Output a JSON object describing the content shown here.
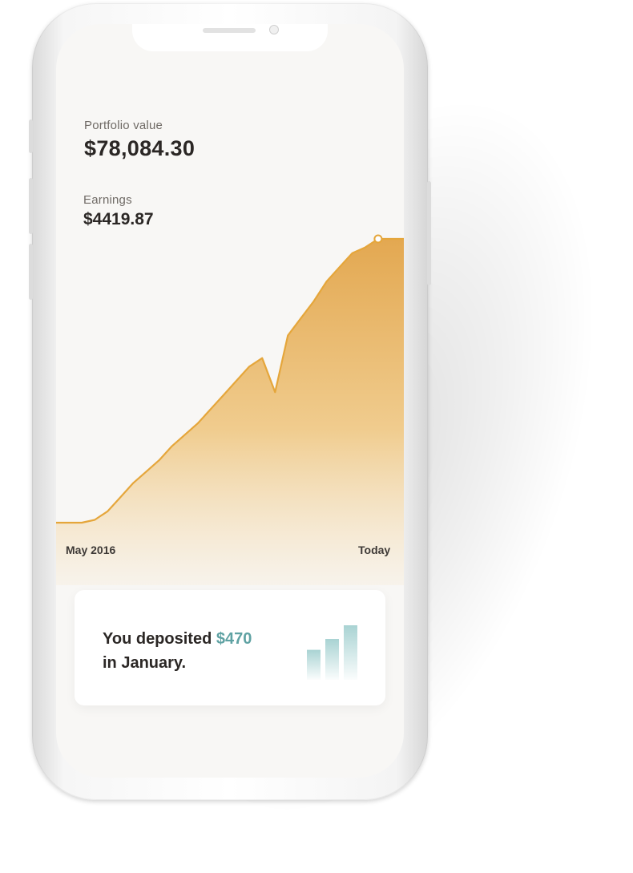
{
  "portfolio": {
    "label": "Portfolio value",
    "value": "$78,084.30"
  },
  "earnings": {
    "label": "Earnings",
    "value": "$4419.87"
  },
  "chart": {
    "start_label": "May 2016",
    "end_label": "Today",
    "line_color": "#e5a63b",
    "fill_top_color": "#e3a851",
    "fill_bottom_color": "#f7f0e4"
  },
  "deposit_card": {
    "prefix": "You deposited",
    "amount": "$470",
    "suffix": "in January.",
    "amount_color": "#5fa2a3",
    "bar_levels": [
      0.55,
      0.75,
      1.0
    ]
  },
  "chart_data": {
    "type": "area",
    "title": "",
    "xlabel": "",
    "ylabel": "",
    "x_start": "May 2016",
    "x_end": "Today",
    "series": [
      {
        "values": [
          0.0,
          0.0,
          0.0,
          0.01,
          0.04,
          0.09,
          0.14,
          0.18,
          0.22,
          0.27,
          0.31,
          0.35,
          0.4,
          0.45,
          0.5,
          0.55,
          0.58,
          0.46,
          0.66,
          0.72,
          0.78,
          0.85,
          0.9,
          0.95,
          0.97,
          1.0,
          1.0,
          1.0
        ]
      }
    ]
  }
}
